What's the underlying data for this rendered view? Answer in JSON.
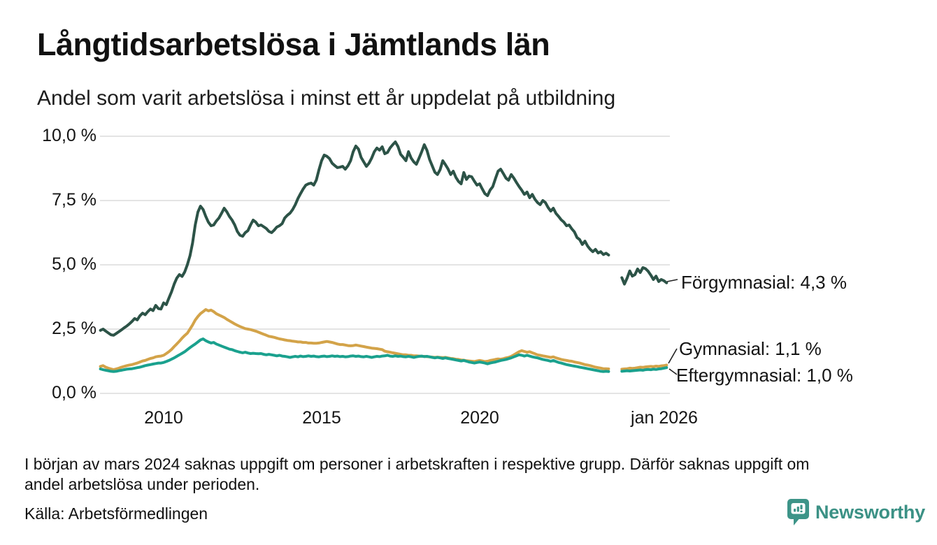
{
  "header": {
    "title": "Långtidsarbetslösa i Jämtlands län",
    "subtitle": "Andel som varit arbetslösa i minst ett år uppdelat på utbildning"
  },
  "chart_data": {
    "type": "line",
    "title": "Långtidsarbetslösa i Jämtlands län",
    "subtitle": "Andel som varit arbetslösa i minst ett år uppdelat på utbildning",
    "unit": "%",
    "x_start": "2008-01",
    "x_end": "2025-12",
    "x_step_months": 1,
    "missing_period": "mars 2024 - juni 2024",
    "grid": true,
    "legend_position": "end-of-line-labels",
    "x_axis": {
      "ticks": [
        {
          "label": "2010",
          "year": 2010
        },
        {
          "label": "2015",
          "year": 2015
        },
        {
          "label": "2020",
          "year": 2020
        },
        {
          "label": "jan 2026",
          "year": 2026
        }
      ]
    },
    "y_axis": {
      "range": [
        0,
        10
      ],
      "ticks": [
        {
          "label": "10,0 %",
          "value": 10
        },
        {
          "label": "7,5 %",
          "value": 7.5
        },
        {
          "label": "5,0 %",
          "value": 5
        },
        {
          "label": "2,5 %",
          "value": 2.5
        },
        {
          "label": "0,0 %",
          "value": 0
        }
      ]
    },
    "series": [
      {
        "name": "Gymnasial",
        "color": "#d3a349",
        "end_label": "Gymnasial: 1,1 %",
        "latest_value_label": "1,1 %",
        "values": [
          1.05,
          1.08,
          1.02,
          0.98,
          0.95,
          0.92,
          0.95,
          0.98,
          1.02,
          1.05,
          1.08,
          1.1,
          1.12,
          1.15,
          1.18,
          1.22,
          1.26,
          1.28,
          1.32,
          1.36,
          1.38,
          1.42,
          1.44,
          1.45,
          1.48,
          1.55,
          1.62,
          1.71,
          1.82,
          1.92,
          2.03,
          2.15,
          2.25,
          2.34,
          2.5,
          2.66,
          2.85,
          2.99,
          3.1,
          3.18,
          3.26,
          3.21,
          3.24,
          3.18,
          3.1,
          3.05,
          3.0,
          2.95,
          2.88,
          2.82,
          2.76,
          2.7,
          2.65,
          2.6,
          2.56,
          2.52,
          2.5,
          2.48,
          2.45,
          2.42,
          2.38,
          2.34,
          2.3,
          2.26,
          2.22,
          2.2,
          2.18,
          2.15,
          2.12,
          2.1,
          2.08,
          2.06,
          2.05,
          2.03,
          2.02,
          2.0,
          2.0,
          1.98,
          1.98,
          1.96,
          1.96,
          1.95,
          1.95,
          1.96,
          1.98,
          2.0,
          2.02,
          2.0,
          1.98,
          1.95,
          1.92,
          1.9,
          1.9,
          1.88,
          1.86,
          1.85,
          1.86,
          1.88,
          1.86,
          1.84,
          1.82,
          1.8,
          1.78,
          1.76,
          1.75,
          1.74,
          1.72,
          1.7,
          1.64,
          1.62,
          1.6,
          1.58,
          1.56,
          1.54,
          1.52,
          1.5,
          1.5,
          1.48,
          1.48,
          1.46,
          1.46,
          1.45,
          1.44,
          1.44,
          1.43,
          1.42,
          1.41,
          1.4,
          1.41,
          1.4,
          1.39,
          1.4,
          1.38,
          1.36,
          1.35,
          1.33,
          1.32,
          1.3,
          1.29,
          1.27,
          1.26,
          1.25,
          1.24,
          1.26,
          1.28,
          1.26,
          1.24,
          1.25,
          1.28,
          1.3,
          1.32,
          1.34,
          1.33,
          1.35,
          1.38,
          1.4,
          1.44,
          1.5,
          1.56,
          1.62,
          1.66,
          1.63,
          1.6,
          1.62,
          1.58,
          1.54,
          1.5,
          1.48,
          1.46,
          1.44,
          1.42,
          1.4,
          1.42,
          1.38,
          1.35,
          1.32,
          1.3,
          1.28,
          1.26,
          1.25,
          1.22,
          1.2,
          1.18,
          1.15,
          1.12,
          1.1,
          1.08,
          1.05,
          1.02,
          1.0,
          0.98,
          0.96,
          0.96,
          0.95,
          null,
          null,
          null,
          null,
          0.94,
          0.95,
          0.96,
          0.98,
          0.97,
          0.98,
          1.0,
          1.02,
          1.01,
          1.03,
          1.04,
          1.05,
          1.04,
          1.06,
          1.05,
          1.07,
          1.08,
          1.1
        ]
      },
      {
        "name": "Eftergymnasial",
        "color": "#1aa18e",
        "end_label": "Eftergymnasial: 1,0 %",
        "latest_value_label": "1,0 %",
        "values": [
          0.95,
          0.92,
          0.9,
          0.88,
          0.86,
          0.85,
          0.86,
          0.88,
          0.9,
          0.92,
          0.94,
          0.95,
          0.96,
          0.98,
          1.0,
          1.02,
          1.05,
          1.08,
          1.1,
          1.12,
          1.14,
          1.16,
          1.18,
          1.18,
          1.2,
          1.24,
          1.28,
          1.33,
          1.38,
          1.44,
          1.5,
          1.56,
          1.62,
          1.7,
          1.78,
          1.85,
          1.92,
          2.0,
          2.08,
          2.12,
          2.05,
          2.0,
          1.96,
          1.98,
          1.92,
          1.88,
          1.84,
          1.8,
          1.76,
          1.72,
          1.7,
          1.66,
          1.63,
          1.6,
          1.58,
          1.6,
          1.57,
          1.55,
          1.56,
          1.55,
          1.54,
          1.55,
          1.52,
          1.5,
          1.52,
          1.5,
          1.48,
          1.46,
          1.48,
          1.45,
          1.44,
          1.42,
          1.4,
          1.42,
          1.44,
          1.42,
          1.45,
          1.43,
          1.44,
          1.46,
          1.44,
          1.45,
          1.43,
          1.42,
          1.44,
          1.45,
          1.43,
          1.44,
          1.46,
          1.44,
          1.45,
          1.43,
          1.44,
          1.42,
          1.43,
          1.45,
          1.46,
          1.44,
          1.45,
          1.43,
          1.42,
          1.44,
          1.42,
          1.4,
          1.42,
          1.44,
          1.43,
          1.45,
          1.46,
          1.48,
          1.45,
          1.44,
          1.46,
          1.44,
          1.45,
          1.43,
          1.42,
          1.44,
          1.42,
          1.4,
          1.42,
          1.44,
          1.45,
          1.43,
          1.44,
          1.42,
          1.4,
          1.38,
          1.4,
          1.38,
          1.36,
          1.38,
          1.36,
          1.34,
          1.32,
          1.3,
          1.28,
          1.26,
          1.28,
          1.25,
          1.22,
          1.2,
          1.18,
          1.2,
          1.22,
          1.2,
          1.18,
          1.15,
          1.18,
          1.2,
          1.22,
          1.25,
          1.28,
          1.3,
          1.32,
          1.35,
          1.38,
          1.42,
          1.46,
          1.5,
          1.48,
          1.45,
          1.48,
          1.45,
          1.42,
          1.4,
          1.38,
          1.35,
          1.32,
          1.3,
          1.28,
          1.25,
          1.28,
          1.24,
          1.2,
          1.18,
          1.15,
          1.12,
          1.1,
          1.08,
          1.06,
          1.04,
          1.02,
          1.0,
          0.98,
          0.96,
          0.94,
          0.92,
          0.9,
          0.88,
          0.86,
          0.85,
          0.86,
          0.85,
          null,
          null,
          null,
          null,
          0.86,
          0.87,
          0.88,
          0.87,
          0.88,
          0.89,
          0.9,
          0.91,
          0.9,
          0.92,
          0.93,
          0.92,
          0.94,
          0.93,
          0.95,
          0.96,
          0.98,
          1.0
        ]
      },
      {
        "name": "Förgymnasial",
        "color": "#2c5347",
        "end_label": "Förgymnasial: 4,3 %",
        "latest_value_label": "4,3 %",
        "values": [
          2.45,
          2.5,
          2.42,
          2.35,
          2.28,
          2.26,
          2.33,
          2.4,
          2.47,
          2.55,
          2.62,
          2.7,
          2.8,
          2.91,
          2.86,
          3.02,
          3.12,
          3.06,
          3.18,
          3.28,
          3.22,
          3.42,
          3.3,
          3.28,
          3.52,
          3.45,
          3.7,
          3.95,
          4.25,
          4.48,
          4.62,
          4.55,
          4.72,
          5.0,
          5.35,
          5.85,
          6.55,
          7.05,
          7.28,
          7.15,
          6.88,
          6.66,
          6.52,
          6.55,
          6.7,
          6.82,
          7.0,
          7.2,
          7.06,
          6.88,
          6.74,
          6.55,
          6.3,
          6.15,
          6.11,
          6.25,
          6.33,
          6.55,
          6.74,
          6.66,
          6.52,
          6.55,
          6.48,
          6.41,
          6.3,
          6.25,
          6.35,
          6.47,
          6.52,
          6.6,
          6.82,
          6.93,
          7.01,
          7.15,
          7.34,
          7.58,
          7.77,
          7.95,
          8.1,
          8.15,
          8.18,
          8.1,
          8.3,
          8.7,
          9.05,
          9.27,
          9.22,
          9.13,
          8.95,
          8.86,
          8.78,
          8.8,
          8.83,
          8.72,
          8.85,
          9.05,
          9.4,
          9.62,
          9.5,
          9.18,
          9.0,
          8.83,
          8.95,
          9.15,
          9.4,
          9.54,
          9.46,
          9.59,
          9.32,
          9.37,
          9.55,
          9.67,
          9.78,
          9.6,
          9.3,
          9.18,
          9.05,
          9.4,
          9.15,
          9.0,
          8.91,
          9.15,
          9.4,
          9.67,
          9.45,
          9.1,
          8.85,
          8.6,
          8.51,
          8.7,
          9.05,
          8.9,
          8.73,
          8.51,
          8.64,
          8.4,
          8.24,
          8.15,
          8.59,
          8.32,
          8.45,
          8.42,
          8.25,
          8.1,
          8.15,
          7.95,
          7.77,
          7.69,
          7.91,
          8.04,
          8.35,
          8.64,
          8.72,
          8.55,
          8.37,
          8.29,
          8.51,
          8.37,
          8.2,
          8.04,
          7.9,
          7.74,
          7.83,
          7.61,
          7.74,
          7.55,
          7.42,
          7.34,
          7.5,
          7.42,
          7.23,
          7.09,
          7.2,
          7.0,
          6.88,
          6.75,
          6.66,
          6.52,
          6.55,
          6.4,
          6.28,
          6.06,
          5.98,
          5.79,
          5.92,
          5.73,
          5.6,
          5.51,
          5.6,
          5.46,
          5.51,
          5.4,
          5.45,
          5.38,
          null,
          null,
          null,
          null,
          4.5,
          4.25,
          4.48,
          4.76,
          4.56,
          4.62,
          4.84,
          4.7,
          4.89,
          4.85,
          4.75,
          4.6,
          4.43,
          4.56,
          4.35,
          4.43,
          4.38,
          4.3
        ]
      }
    ]
  },
  "footer": {
    "note_lines": [
      "I början av mars 2024 saknas uppgift om personer i arbetskraften i respektive grupp. Därför saknas uppgift om",
      "andel arbetslösa under perioden."
    ],
    "source": "Källa: Arbetsförmedlingen",
    "brand": {
      "name": "Newsworthy",
      "icon": "newsworthy-bubble-chart-icon",
      "color": "#3d9488"
    }
  }
}
